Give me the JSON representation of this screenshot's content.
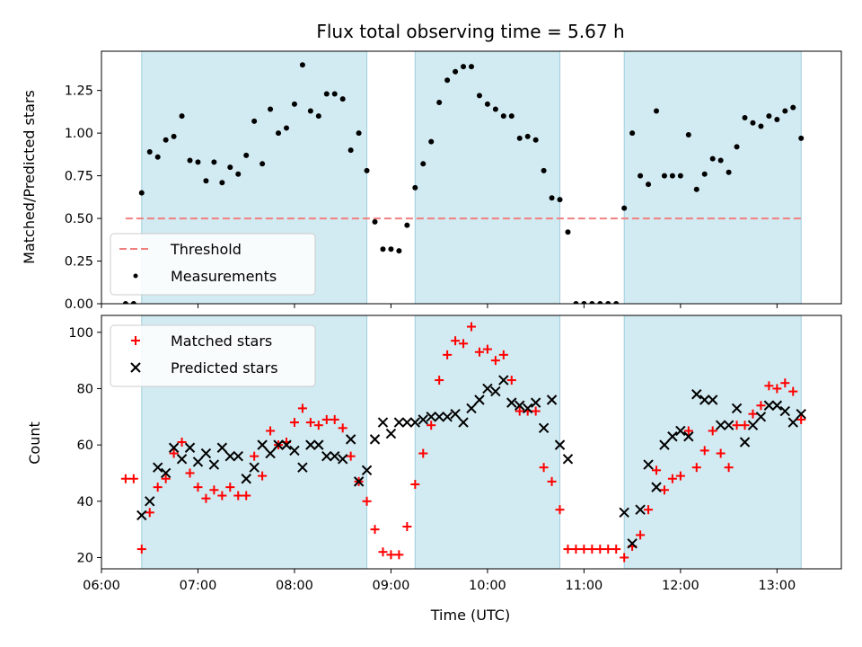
{
  "chart_data": [
    {
      "type": "scatter",
      "title": "Flux total observing time = 5.67 h",
      "xlabel": "",
      "ylabel": "Matched/Predicted stars",
      "xlim": [
        "06:00",
        "13:40"
      ],
      "ylim": [
        0,
        1.48
      ],
      "yticks": [
        0.0,
        0.25,
        0.5,
        0.75,
        1.0,
        1.25
      ],
      "ytick_labels": [
        "0.00",
        "0.25",
        "0.50",
        "0.75",
        "1.00",
        "1.25"
      ],
      "legend_position": "lower-left",
      "threshold": {
        "name": "Threshold",
        "value": 0.5,
        "x_range": [
          "06:15",
          "13:15"
        ],
        "color": "#f08080",
        "style": "dashed"
      },
      "series": [
        {
          "name": "Measurements",
          "color": "#000000",
          "marker": "dot",
          "x": [
            "06:15",
            "06:20",
            "06:25",
            "06:30",
            "06:35",
            "06:40",
            "06:45",
            "06:50",
            "06:55",
            "07:00",
            "07:05",
            "07:10",
            "07:15",
            "07:20",
            "07:25",
            "07:30",
            "07:35",
            "07:40",
            "07:45",
            "07:50",
            "07:55",
            "08:00",
            "08:05",
            "08:10",
            "08:15",
            "08:20",
            "08:25",
            "08:30",
            "08:35",
            "08:40",
            "08:45",
            "08:50",
            "08:55",
            "09:00",
            "09:05",
            "09:10",
            "09:15",
            "09:20",
            "09:25",
            "09:30",
            "09:35",
            "09:40",
            "09:45",
            "09:50",
            "09:55",
            "10:00",
            "10:05",
            "10:10",
            "10:15",
            "10:20",
            "10:25",
            "10:30",
            "10:35",
            "10:40",
            "10:45",
            "10:50",
            "10:55",
            "11:00",
            "11:05",
            "11:10",
            "11:15",
            "11:20",
            "11:25",
            "11:30",
            "11:35",
            "11:40",
            "11:45",
            "11:50",
            "11:55",
            "12:00",
            "12:05",
            "12:10",
            "12:15",
            "12:20",
            "12:25",
            "12:30",
            "12:35",
            "12:40",
            "12:45",
            "12:50",
            "12:55",
            "13:00",
            "13:05",
            "13:10",
            "13:15"
          ],
          "values": [
            0.0,
            0.0,
            0.65,
            0.89,
            0.86,
            0.96,
            0.98,
            1.1,
            0.84,
            0.83,
            0.72,
            0.83,
            0.71,
            0.8,
            0.76,
            0.87,
            1.07,
            0.82,
            1.14,
            1.0,
            1.03,
            1.17,
            1.4,
            1.13,
            1.1,
            1.23,
            1.23,
            1.2,
            0.9,
            1.0,
            0.78,
            0.48,
            0.32,
            0.32,
            0.31,
            0.46,
            0.68,
            0.82,
            0.95,
            1.18,
            1.31,
            1.36,
            1.39,
            1.39,
            1.22,
            1.17,
            1.14,
            1.1,
            1.1,
            0.97,
            0.98,
            0.96,
            0.78,
            0.62,
            0.61,
            0.42,
            0.0,
            0.0,
            0.0,
            0.0,
            0.0,
            0.0,
            0.56,
            1.0,
            0.75,
            0.7,
            1.13,
            0.75,
            0.75,
            0.75,
            0.99,
            0.67,
            0.76,
            0.85,
            0.84,
            0.77,
            0.92,
            1.09,
            1.06,
            1.04,
            1.1,
            1.08,
            1.13,
            1.15,
            0.97
          ]
        }
      ],
      "shaded_regions": [
        [
          "06:25",
          "08:45"
        ],
        [
          "09:15",
          "10:45"
        ],
        [
          "11:25",
          "13:15"
        ]
      ]
    },
    {
      "type": "scatter",
      "title": "",
      "xlabel": "Time (UTC)",
      "ylabel": "Count",
      "xlim": [
        "06:00",
        "13:40"
      ],
      "xticks": [
        "06:00",
        "07:00",
        "08:00",
        "09:00",
        "10:00",
        "11:00",
        "12:00",
        "13:00"
      ],
      "ylim": [
        16,
        106
      ],
      "yticks": [
        20,
        40,
        60,
        80,
        100
      ],
      "legend_position": "upper-left",
      "series": [
        {
          "name": "Matched stars",
          "color": "#ff0000",
          "marker": "plus",
          "x": [
            "06:15",
            "06:20",
            "06:25",
            "06:30",
            "06:35",
            "06:40",
            "06:45",
            "06:50",
            "06:55",
            "07:00",
            "07:05",
            "07:10",
            "07:15",
            "07:20",
            "07:25",
            "07:30",
            "07:35",
            "07:40",
            "07:45",
            "07:50",
            "07:55",
            "08:00",
            "08:05",
            "08:10",
            "08:15",
            "08:20",
            "08:25",
            "08:30",
            "08:35",
            "08:40",
            "08:45",
            "08:50",
            "08:55",
            "09:00",
            "09:05",
            "09:10",
            "09:15",
            "09:20",
            "09:25",
            "09:30",
            "09:35",
            "09:40",
            "09:45",
            "09:50",
            "09:55",
            "10:00",
            "10:05",
            "10:10",
            "10:15",
            "10:20",
            "10:25",
            "10:30",
            "10:35",
            "10:40",
            "10:45",
            "10:50",
            "10:55",
            "11:00",
            "11:05",
            "11:10",
            "11:15",
            "11:20",
            "11:25",
            "11:30",
            "11:35",
            "11:40",
            "11:45",
            "11:50",
            "11:55",
            "12:00",
            "12:05",
            "12:10",
            "12:15",
            "12:20",
            "12:25",
            "12:30",
            "12:35",
            "12:40",
            "12:45",
            "12:50",
            "12:55",
            "13:00",
            "13:05",
            "13:10",
            "13:15"
          ],
          "values": [
            48,
            48,
            23,
            36,
            45,
            48,
            57,
            61,
            50,
            45,
            41,
            44,
            42,
            45,
            42,
            42,
            56,
            49,
            65,
            60,
            61,
            68,
            73,
            68,
            67,
            69,
            69,
            66,
            56,
            47,
            40,
            30,
            22,
            21,
            21,
            31,
            46,
            57,
            67,
            83,
            92,
            97,
            96,
            102,
            93,
            94,
            90,
            92,
            83,
            72,
            72,
            72,
            52,
            47,
            37,
            23,
            23,
            23,
            23,
            23,
            23,
            23,
            20,
            24,
            28,
            37,
            51,
            44,
            48,
            49,
            65,
            52,
            58,
            65,
            57,
            52,
            67,
            67,
            71,
            74,
            81,
            80,
            82,
            79,
            69
          ]
        },
        {
          "name": "Predicted stars",
          "color": "#000000",
          "marker": "x",
          "x": [
            "06:25",
            "06:30",
            "06:35",
            "06:40",
            "06:45",
            "06:50",
            "06:55",
            "07:00",
            "07:05",
            "07:10",
            "07:15",
            "07:20",
            "07:25",
            "07:30",
            "07:35",
            "07:40",
            "07:45",
            "07:50",
            "07:55",
            "08:00",
            "08:05",
            "08:10",
            "08:15",
            "08:20",
            "08:25",
            "08:30",
            "08:35",
            "08:40",
            "08:45",
            "08:50",
            "08:55",
            "09:00",
            "09:05",
            "09:10",
            "09:15",
            "09:20",
            "09:25",
            "09:30",
            "09:35",
            "09:40",
            "09:45",
            "09:50",
            "09:55",
            "10:00",
            "10:05",
            "10:10",
            "10:15",
            "10:20",
            "10:25",
            "10:30",
            "10:35",
            "10:40",
            "10:45",
            "10:50",
            "11:25",
            "11:30",
            "11:35",
            "11:40",
            "11:45",
            "11:50",
            "11:55",
            "12:00",
            "12:05",
            "12:10",
            "12:15",
            "12:20",
            "12:25",
            "12:30",
            "12:35",
            "12:40",
            "12:45",
            "12:50",
            "12:55",
            "13:00",
            "13:05",
            "13:10",
            "13:15"
          ],
          "values": [
            35,
            40,
            52,
            50,
            59,
            55,
            59,
            54,
            57,
            53,
            59,
            56,
            56,
            48,
            52,
            60,
            57,
            60,
            60,
            58,
            52,
            60,
            60,
            56,
            56,
            55,
            62,
            47,
            51,
            62,
            68,
            64,
            68,
            68,
            68,
            69,
            70,
            70,
            70,
            71,
            68,
            73,
            76,
            80,
            79,
            83,
            75,
            74,
            73,
            75,
            66,
            76,
            60,
            55,
            36,
            25,
            37,
            53,
            45,
            60,
            63,
            65,
            63,
            78,
            76,
            76,
            67,
            67,
            73,
            61,
            67,
            70,
            74,
            74,
            72,
            68,
            71
          ]
        }
      ],
      "shaded_regions": [
        [
          "06:25",
          "08:45"
        ],
        [
          "09:15",
          "10:45"
        ],
        [
          "11:25",
          "13:15"
        ]
      ]
    }
  ],
  "colors": {
    "shade": "#add8e6",
    "threshold": "#f08080",
    "matched": "#ff0000",
    "predicted": "#000000"
  }
}
